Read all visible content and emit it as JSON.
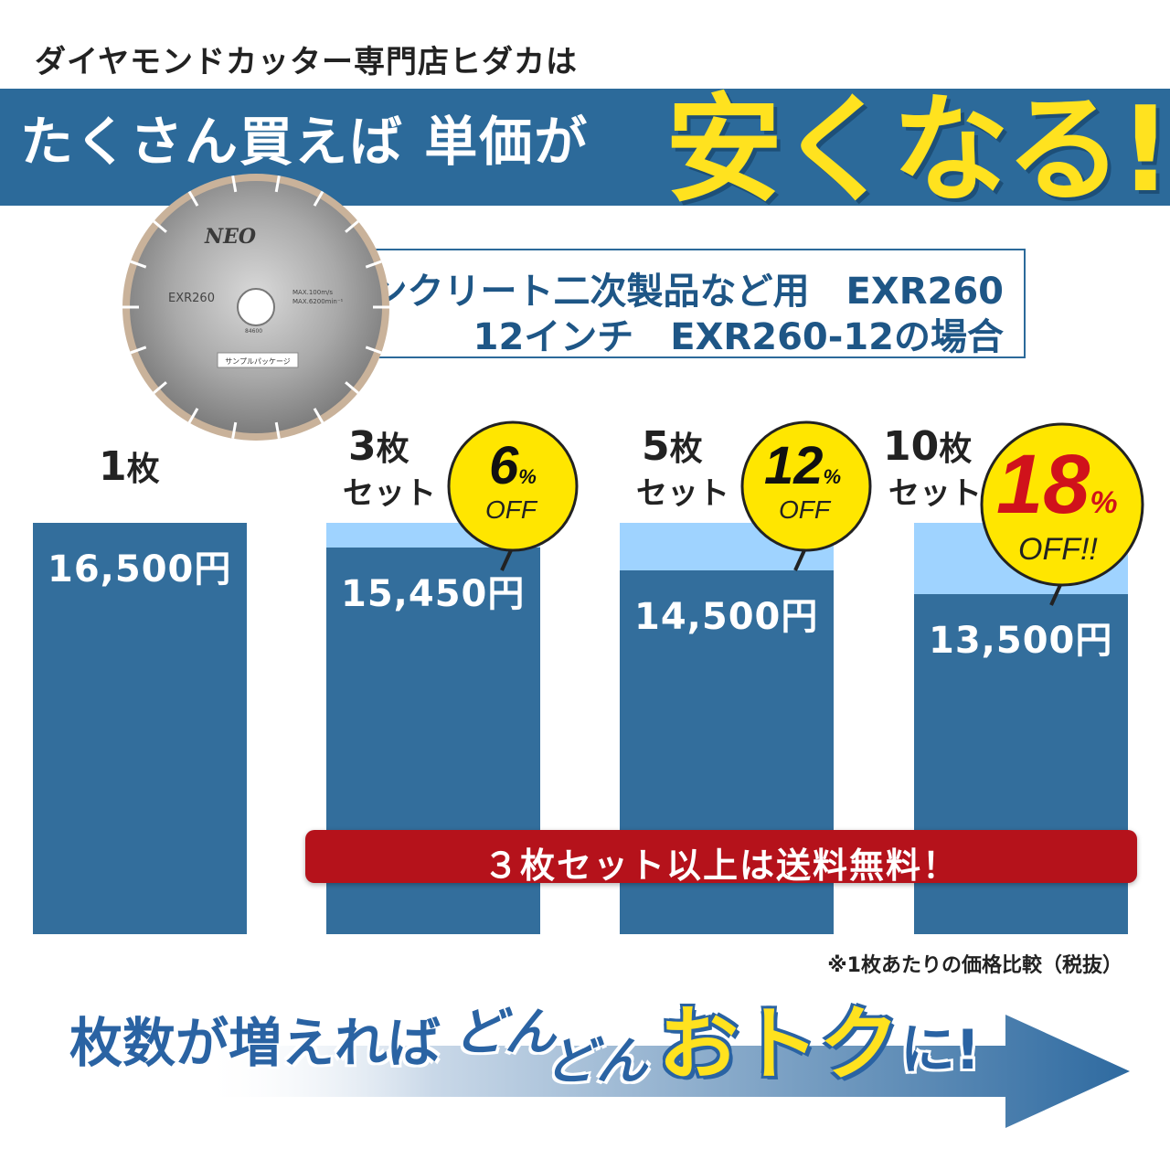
{
  "header": {
    "subtitle": "ダイヤモンドカッター専門店ヒダカは",
    "headline_a": "たくさん買えば 単価が",
    "headline_b": "安くなる!"
  },
  "product": {
    "line1": "コンクリート二次製品など用　EXR260",
    "line2": "12インチ　EXR260-12の場合",
    "blade": {
      "brand": "NEO",
      "model": "EXR260",
      "spec1": "MAX.100m/s",
      "spec2": "MAX.6200min⁻¹",
      "code": "84600",
      "package_label": "サンプルパッケージ"
    }
  },
  "chart_data": {
    "type": "bar",
    "categories": [
      "1枚",
      "3枚セット",
      "5枚セット",
      "10枚セット"
    ],
    "values": [
      16500,
      15450,
      14500,
      13500
    ],
    "value_labels": [
      "16,500円",
      "15,450円",
      "14,500円",
      "13,500円"
    ],
    "discounts": [
      "",
      "6%OFF",
      "12%OFF",
      "18%OFF!!"
    ],
    "ylim": [
      0,
      16500
    ],
    "xlabel": "",
    "ylabel": "",
    "colors": {
      "bar": "#336e9c",
      "reference": "#9fd3ff"
    }
  },
  "tiers": [
    {
      "num": "1",
      "unit": "枚",
      "set": ""
    },
    {
      "num": "3",
      "unit": "枚",
      "set": "セット"
    },
    {
      "num": "5",
      "unit": "枚",
      "set": "セット"
    },
    {
      "num": "10",
      "unit": "枚",
      "set": "セット"
    }
  ],
  "badges": [
    {
      "pct": "6",
      "pct_sign": "%",
      "off": "OFF",
      "pct_color": "#111111"
    },
    {
      "pct": "12",
      "pct_sign": "%",
      "off": "OFF",
      "pct_color": "#111111"
    },
    {
      "pct": "18",
      "pct_sign": "%",
      "off": "OFF!!",
      "pct_color": "#d0121b"
    }
  ],
  "shipping": "３枚セット以上は送料無料！",
  "note": "※1枚あたりの価格比較（税抜）",
  "slogan": {
    "a": "枚数が増えれば",
    "b1": "どん",
    "b2": "どん",
    "c": "おトク",
    "d": "に!"
  },
  "colors": {
    "brand_blue": "#2c6a9a",
    "accent_yellow": "#ffe21f",
    "alert_red": "#b5121b"
  }
}
